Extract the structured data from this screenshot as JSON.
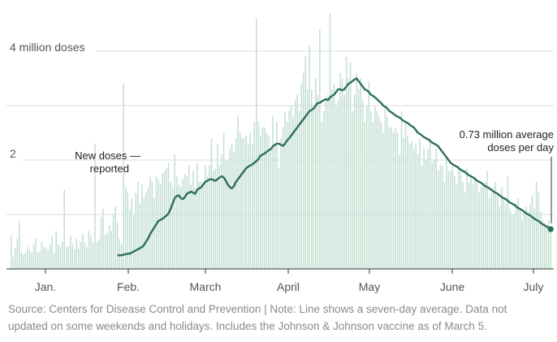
{
  "chart_data": {
    "type": "bar",
    "series": [
      {
        "values_unit": "million doses",
        "values": [
          0.62,
          0.22,
          0.38,
          0.55,
          0.88,
          0.3,
          0.26,
          0.3,
          0.4,
          0.35,
          0.3,
          0.45,
          0.55,
          0.3,
          0.32,
          0.5,
          0.4,
          0.38,
          0.35,
          0.45,
          0.6,
          0.28,
          0.7,
          0.46,
          0.4,
          0.5,
          1.45,
          0.4,
          0.42,
          0.6,
          0.45,
          0.36,
          0.55,
          0.38,
          0.5,
          0.65,
          0.48,
          0.4,
          0.7,
          0.6,
          0.5,
          2.3,
          0.5,
          0.55,
          0.95,
          1.1,
          0.62,
          0.65,
          0.8,
          0.7,
          1.0,
          1.15,
          0.85,
          0.55,
          0.45,
          3.4,
          1.5,
          1.4,
          1.1,
          1.3,
          1.0,
          1.4,
          1.6,
          1.2,
          1.55,
          1.3,
          1.4,
          1.5,
          1.7,
          1.6,
          1.3,
          1.7,
          1.65,
          1.55,
          1.75,
          1.8,
          1.85,
          1.95,
          1.6,
          1.5,
          2.1,
          1.7,
          1.55,
          1.5,
          1.65,
          1.75,
          1.7,
          1.9,
          1.55,
          1.8,
          1.5,
          1.95,
          1.6,
          1.6,
          1.6,
          1.9,
          1.7,
          1.9,
          2.4,
          1.8,
          1.85,
          2.3,
          1.9,
          2.1,
          2.5,
          2.0,
          2.0,
          2.2,
          2.3,
          2.15,
          2.4,
          2.8,
          2.5,
          2.4,
          2.4,
          2.45,
          2.3,
          2.5,
          2.3,
          2.7,
          4.6,
          2.7,
          2.45,
          2.6,
          2.6,
          2.5,
          2.45,
          2.2,
          2.8,
          2.3,
          2.7,
          1.85,
          2.4,
          2.6,
          2.9,
          2.7,
          2.9,
          3.0,
          2.8,
          3.1,
          3.2,
          2.9,
          3.4,
          3.6,
          3.9,
          3.3,
          4.1,
          3.3,
          3.0,
          3.5,
          3.2,
          4.4,
          2.7,
          2.9,
          3.1,
          3.2,
          4.7,
          3.3,
          3.4,
          3.0,
          3.1,
          3.6,
          3.5,
          3.2,
          3.9,
          3.5,
          3.8,
          2.9,
          3.2,
          3.6,
          3.3,
          3.5,
          3.1,
          2.7,
          3.0,
          3.45,
          2.9,
          2.7,
          3.0,
          2.9,
          2.8,
          2.7,
          2.5,
          3.0,
          2.8,
          2.6,
          2.6,
          2.5,
          2.6,
          2.5,
          2.1,
          2.9,
          2.4,
          2.7,
          2.45,
          2.3,
          2.35,
          2.2,
          2.3,
          2.1,
          2.4,
          1.9,
          2.2,
          2.0,
          2.2,
          2.4,
          1.95,
          2.0,
          2.2,
          1.8,
          1.9,
          1.9,
          1.6,
          2.0,
          1.8,
          1.8,
          1.9,
          1.7,
          1.55,
          1.9,
          1.8,
          1.6,
          1.4,
          1.85,
          1.6,
          1.7,
          1.55,
          1.7,
          1.6,
          1.4,
          1.5,
          1.55,
          1.6,
          1.8,
          1.3,
          1.4,
          1.5,
          1.6,
          1.35,
          1.15,
          1.5,
          1.3,
          1.2,
          1.7,
          1.1,
          1.0,
          1.0,
          1.2,
          1.3,
          1.1,
          0.9,
          1.05,
          1.15,
          1.05,
          1.2,
          1.35,
          1.1,
          1.6,
          1.4,
          1.05,
          0.9,
          0.85,
          0.8,
          0.9,
          0.75
        ]
      },
      {
        "values_unit": "million doses",
        "values": [
          0.25,
          0.25,
          0.25,
          0.26,
          0.27,
          0.28,
          0.28,
          0.3,
          0.32,
          0.34,
          0.36,
          0.38,
          0.4,
          0.44,
          0.5,
          0.56,
          0.64,
          0.7,
          0.76,
          0.82,
          0.88,
          0.9,
          0.92,
          0.95,
          0.98,
          1.02,
          1.1,
          1.2,
          1.3,
          1.34,
          1.35,
          1.3,
          1.28,
          1.32,
          1.38,
          1.4,
          1.42,
          1.4,
          1.38,
          1.45,
          1.48,
          1.5,
          1.55,
          1.6,
          1.62,
          1.64,
          1.65,
          1.63,
          1.62,
          1.65,
          1.68,
          1.7,
          1.68,
          1.62,
          1.55,
          1.5,
          1.48,
          1.52,
          1.6,
          1.65,
          1.7,
          1.75,
          1.8,
          1.85,
          1.88,
          1.9,
          1.92,
          1.95,
          1.98,
          2.02,
          2.08,
          2.1,
          2.12,
          2.15,
          2.18,
          2.2,
          2.25,
          2.28,
          2.3,
          2.3,
          2.28,
          2.26,
          2.3,
          2.36,
          2.4,
          2.45,
          2.5,
          2.55,
          2.6,
          2.65,
          2.7,
          2.75,
          2.8,
          2.85,
          2.9,
          2.92,
          2.95,
          3.0,
          3.05,
          3.05,
          3.08,
          3.1,
          3.12,
          3.1,
          3.15,
          3.18,
          3.2,
          3.25,
          3.3,
          3.3,
          3.28,
          3.3,
          3.35,
          3.4,
          3.42,
          3.45,
          3.48,
          3.5,
          3.45,
          3.4,
          3.35,
          3.3,
          3.28,
          3.25,
          3.2,
          3.18,
          3.15,
          3.12,
          3.08,
          3.05,
          3.0,
          2.98,
          2.95,
          2.9,
          2.88,
          2.85,
          2.82,
          2.8,
          2.78,
          2.75,
          2.72,
          2.7,
          2.68,
          2.65,
          2.62,
          2.6,
          2.55,
          2.5,
          2.48,
          2.45,
          2.42,
          2.4,
          2.38,
          2.35,
          2.32,
          2.3,
          2.28,
          2.25,
          2.2,
          2.15,
          2.1,
          2.05,
          2.0,
          1.95,
          1.92,
          1.9,
          1.88,
          1.85,
          1.82,
          1.8,
          1.78,
          1.75,
          1.72,
          1.7,
          1.68,
          1.65,
          1.62,
          1.6,
          1.58,
          1.55,
          1.52,
          1.5,
          1.48,
          1.45,
          1.42,
          1.4,
          1.38,
          1.35,
          1.32,
          1.3,
          1.28,
          1.25,
          1.22,
          1.2,
          1.18,
          1.15,
          1.12,
          1.1,
          1.08,
          1.05,
          1.02,
          1.0,
          0.98,
          0.95,
          0.92,
          0.9,
          0.88,
          0.85,
          0.82,
          0.8,
          0.78,
          0.75,
          0.73
        ]
      }
    ],
    "note": "series 1: New doses reported; series 2: seven-day average",
    "x_labels": [
      "Jan.",
      "Feb.",
      "March",
      "April",
      "May",
      "June",
      "July"
    ],
    "y_tick_labels": [
      "2",
      "4 million doses"
    ],
    "annotations": {
      "new_doses": [
        "New doses —",
        "reported"
      ],
      "average": [
        "0.73 million average",
        "doses per day"
      ]
    },
    "colors": {
      "bars": "#c5e0d3",
      "line": "#2e6f5c",
      "grid": "#dddddd",
      "axis": "#333333"
    }
  },
  "footer": {
    "source": "Source: Centers for Disease Control and Prevention | Note: Line shows a seven-day average. Data not updated on some weekends and holidays. Includes the Johnson & Johnson vaccine as of March 5."
  }
}
